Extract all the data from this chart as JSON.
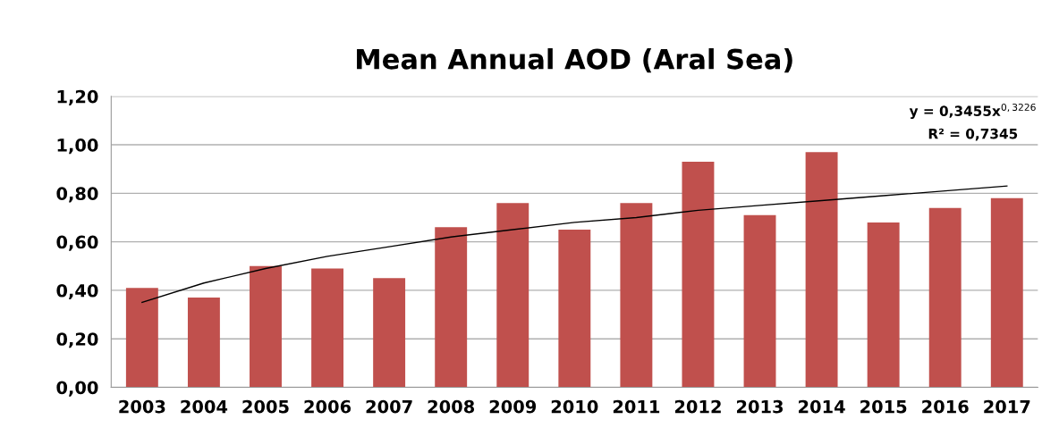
{
  "chart_data": {
    "type": "bar",
    "title": "Mean Annual AOD (Aral Sea)",
    "categories": [
      "2003",
      "2004",
      "2005",
      "2006",
      "2007",
      "2008",
      "2009",
      "2010",
      "2011",
      "2012",
      "2013",
      "2014",
      "2015",
      "2016",
      "2017"
    ],
    "series": [
      {
        "color": "#c0504d",
        "values": [
          0.41,
          0.37,
          0.5,
          0.49,
          0.45,
          0.66,
          0.76,
          0.65,
          0.76,
          0.93,
          0.71,
          0.97,
          0.68,
          0.74,
          0.78
        ]
      },
      {
        "type": "line",
        "color": "#000000",
        "values": [
          0.35,
          0.43,
          0.49,
          0.54,
          0.58,
          0.62,
          0.65,
          0.68,
          0.7,
          0.73,
          0.75,
          0.77,
          0.79,
          0.81,
          0.83
        ]
      }
    ],
    "ylim": [
      0,
      1.2
    ],
    "yticks": [
      {
        "value": 0,
        "label": "0,00"
      },
      {
        "value": 0.2,
        "label": "0,20"
      },
      {
        "value": 0.4,
        "label": "0,40"
      },
      {
        "value": 0.6,
        "label": "0,60"
      },
      {
        "value": 0.8,
        "label": "0,80"
      },
      {
        "value": 1.0,
        "label": "1,00"
      },
      {
        "value": 1.2,
        "label": "1,20"
      }
    ],
    "grid": "y",
    "annotations": [
      "y = 0,3455x$^{0,3226}$",
      "R² = 0,7345"
    ]
  }
}
